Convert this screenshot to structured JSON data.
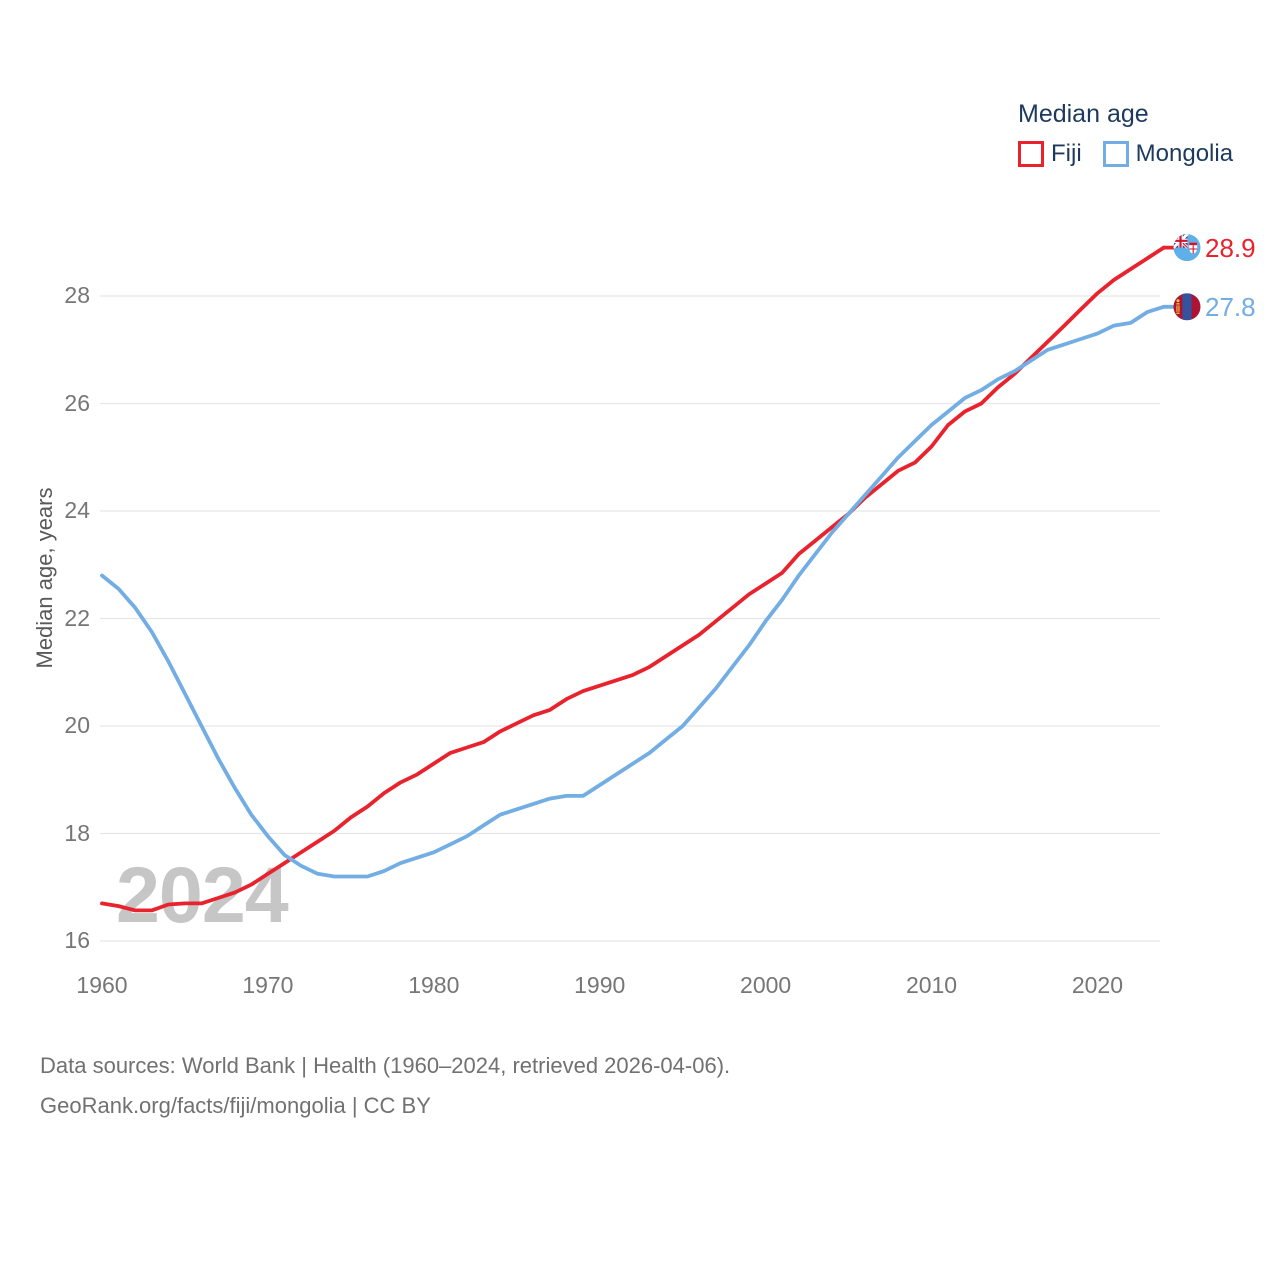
{
  "legend": {
    "title": "Median age",
    "items": [
      {
        "id": "fiji",
        "label": "Fiji"
      },
      {
        "id": "mongolia",
        "label": "Mongolia"
      }
    ]
  },
  "y_axis": {
    "title": "Median age, years",
    "ticks": [
      16,
      18,
      20,
      22,
      24,
      26,
      28
    ]
  },
  "x_axis": {
    "ticks": [
      1960,
      1970,
      1980,
      1990,
      2000,
      2010,
      2020
    ]
  },
  "watermark": "2024",
  "footer": {
    "sources_line": "Data sources: World Bank | Health (1960–2024, retrieved 2026-04-06).",
    "attribution_line": "GeoRank.org/facts/fiji/mongolia | CC BY"
  },
  "colors": {
    "fiji": "#e8232e",
    "mongolia": "#72ade4",
    "legend_text": "#1d3a5c",
    "tick_text": "#767676",
    "grid": "#e7e7e7",
    "watermark": "#c6c6c6",
    "footer_text": "#717171"
  },
  "chart_data": {
    "type": "line",
    "title": "Median age",
    "xlabel": "",
    "ylabel": "Median age, years",
    "xlim": [
      1960,
      2024
    ],
    "ylim": [
      15.8,
      29.4
    ],
    "xticks": [
      1960,
      1970,
      1980,
      1990,
      2000,
      2010,
      2020
    ],
    "yticks": [
      16,
      18,
      20,
      22,
      24,
      26,
      28
    ],
    "grid": true,
    "legend_position": "top-right",
    "x": [
      1960,
      1961,
      1962,
      1963,
      1964,
      1965,
      1966,
      1967,
      1968,
      1969,
      1970,
      1971,
      1972,
      1973,
      1974,
      1975,
      1976,
      1977,
      1978,
      1979,
      1980,
      1981,
      1982,
      1983,
      1984,
      1985,
      1986,
      1987,
      1988,
      1989,
      1990,
      1991,
      1992,
      1993,
      1994,
      1995,
      1996,
      1997,
      1998,
      1999,
      2000,
      2001,
      2002,
      2003,
      2004,
      2005,
      2006,
      2007,
      2008,
      2009,
      2010,
      2011,
      2012,
      2013,
      2014,
      2015,
      2016,
      2017,
      2018,
      2019,
      2020,
      2021,
      2022,
      2023,
      2024
    ],
    "series": [
      {
        "name": "Fiji",
        "color": "#e8232e",
        "end_label": "28.9",
        "values": [
          16.7,
          16.65,
          16.57,
          16.57,
          16.68,
          16.7,
          16.7,
          16.8,
          16.9,
          17.05,
          17.25,
          17.45,
          17.65,
          17.85,
          18.05,
          18.3,
          18.5,
          18.75,
          18.95,
          19.1,
          19.3,
          19.5,
          19.6,
          19.7,
          19.9,
          20.05,
          20.2,
          20.3,
          20.5,
          20.65,
          20.75,
          20.85,
          20.95,
          21.1,
          21.3,
          21.5,
          21.7,
          21.95,
          22.2,
          22.45,
          22.65,
          22.85,
          23.2,
          23.45,
          23.7,
          23.95,
          24.25,
          24.5,
          24.75,
          24.9,
          25.2,
          25.6,
          25.85,
          26.0,
          26.3,
          26.55,
          26.85,
          27.15,
          27.45,
          27.75,
          28.05,
          28.3,
          28.5,
          28.7,
          28.9
        ]
      },
      {
        "name": "Mongolia",
        "color": "#72ade4",
        "end_label": "27.8",
        "values": [
          22.8,
          22.55,
          22.2,
          21.75,
          21.2,
          20.6,
          20.0,
          19.4,
          18.85,
          18.35,
          17.95,
          17.6,
          17.4,
          17.25,
          17.2,
          17.2,
          17.2,
          17.3,
          17.45,
          17.55,
          17.65,
          17.8,
          17.95,
          18.15,
          18.35,
          18.45,
          18.55,
          18.65,
          18.7,
          18.7,
          18.9,
          19.1,
          19.3,
          19.5,
          19.75,
          20.0,
          20.35,
          20.7,
          21.1,
          21.5,
          21.95,
          22.35,
          22.8,
          23.2,
          23.6,
          23.95,
          24.3,
          24.65,
          25.0,
          25.3,
          25.6,
          25.85,
          26.1,
          26.25,
          26.45,
          26.6,
          26.8,
          27.0,
          27.1,
          27.2,
          27.3,
          27.45,
          27.5,
          27.7,
          27.8
        ]
      }
    ]
  }
}
